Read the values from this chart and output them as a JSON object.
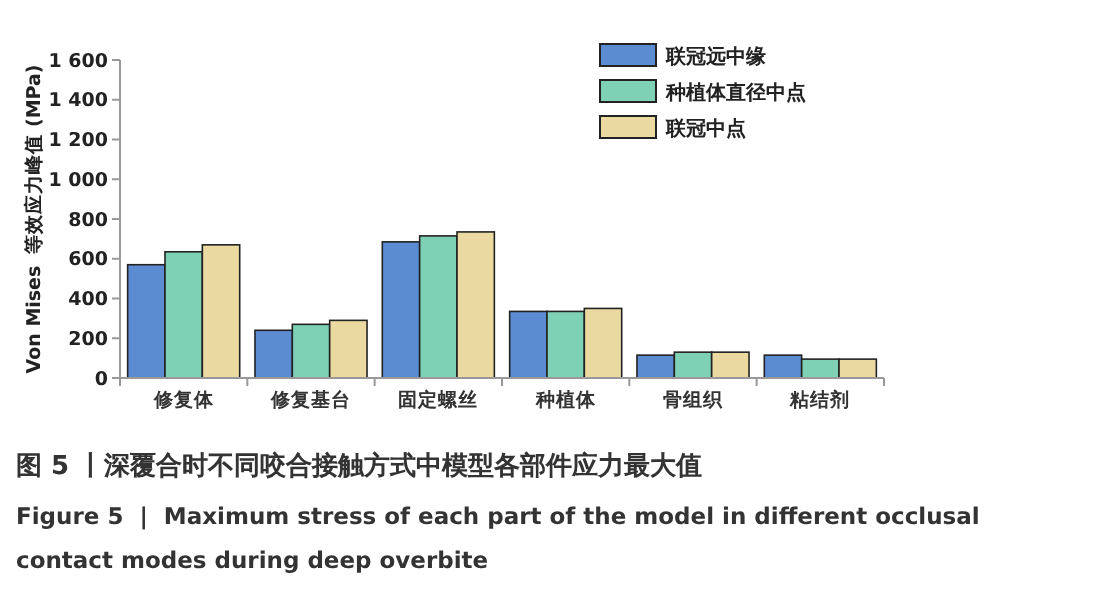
{
  "chart_data": {
    "type": "bar",
    "title": "图 5 丨深覆合时不同咬合接触方式中模型各部件应力最大值",
    "subtitle": "Figure 5  |  Maximum stress of each part of the model in different occlusal contact modes during deep overbite",
    "ylabel": "Von Mises  等效应力峰值 (MPa)",
    "categories": [
      "修复体",
      "修复基台",
      "固定螺丝",
      "种植体",
      "骨组织",
      "粘结剂"
    ],
    "series": [
      {
        "name": "联冠远中缘",
        "color": "#5b8bd0",
        "values": [
          570,
          240,
          685,
          335,
          115,
          115
        ]
      },
      {
        "name": "种植体直径中点",
        "color": "#7fd1b6",
        "values": [
          635,
          270,
          715,
          335,
          130,
          95
        ]
      },
      {
        "name": "联冠中点",
        "color": "#ead9a0",
        "values": [
          670,
          290,
          735,
          350,
          130,
          95
        ]
      }
    ],
    "ylim": [
      0,
      1600
    ],
    "yticks": [
      0,
      200,
      400,
      600,
      800,
      {
        "value": 1000,
        "label": "1 000"
      },
      {
        "value": 1200,
        "label": "1 200"
      },
      {
        "value": 1400,
        "label": "1 400"
      },
      {
        "value": 1600,
        "label": "1 600"
      }
    ],
    "grid": false,
    "legend": "top right"
  }
}
